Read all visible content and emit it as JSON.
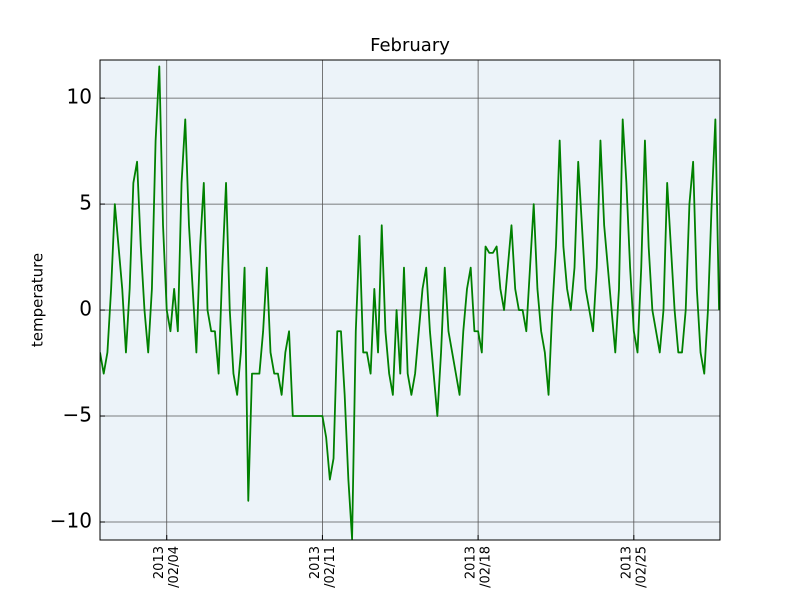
{
  "chart_data": {
    "type": "line",
    "title": "February",
    "y_label": "temperature",
    "x": [
      "2013-02-01T00:00",
      "2013-02-01T04:00",
      "2013-02-01T08:00",
      "2013-02-01T12:00",
      "2013-02-01T16:00",
      "2013-02-01T20:00",
      "2013-02-02T00:00",
      "2013-02-02T04:00",
      "2013-02-02T08:00",
      "2013-02-02T12:00",
      "2013-02-02T16:00",
      "2013-02-02T20:00",
      "2013-02-03T00:00",
      "2013-02-03T04:00",
      "2013-02-03T08:00",
      "2013-02-03T12:00",
      "2013-02-03T16:00",
      "2013-02-03T20:00",
      "2013-02-04T00:00",
      "2013-02-04T04:00",
      "2013-02-04T08:00",
      "2013-02-04T12:00",
      "2013-02-04T16:00",
      "2013-02-04T20:00",
      "2013-02-05T00:00",
      "2013-02-05T04:00",
      "2013-02-05T08:00",
      "2013-02-05T12:00",
      "2013-02-05T16:00",
      "2013-02-05T20:00",
      "2013-02-06T00:00",
      "2013-02-06T04:00",
      "2013-02-06T08:00",
      "2013-02-06T12:00",
      "2013-02-06T16:00",
      "2013-02-06T20:00",
      "2013-02-07T00:00",
      "2013-02-07T04:00",
      "2013-02-07T08:00",
      "2013-02-07T12:00",
      "2013-02-07T16:00",
      "2013-02-07T20:00",
      "2013-02-08T00:00",
      "2013-02-08T04:00",
      "2013-02-08T08:00",
      "2013-02-08T12:00",
      "2013-02-08T16:00",
      "2013-02-08T20:00",
      "2013-02-09T00:00",
      "2013-02-09T04:00",
      "2013-02-09T08:00",
      "2013-02-09T12:00",
      "2013-02-09T16:00",
      "2013-02-09T20:00",
      "2013-02-10T00:00",
      "2013-02-10T04:00",
      "2013-02-10T08:00",
      "2013-02-10T12:00",
      "2013-02-10T16:00",
      "2013-02-10T20:00",
      "2013-02-11T00:00",
      "2013-02-11T04:00",
      "2013-02-11T08:00",
      "2013-02-11T12:00",
      "2013-02-11T16:00",
      "2013-02-11T20:00",
      "2013-02-12T00:00",
      "2013-02-12T04:00",
      "2013-02-12T08:00",
      "2013-02-12T12:00",
      "2013-02-12T16:00",
      "2013-02-12T20:00",
      "2013-02-13T00:00",
      "2013-02-13T04:00",
      "2013-02-13T08:00",
      "2013-02-13T12:00",
      "2013-02-13T16:00",
      "2013-02-13T20:00",
      "2013-02-14T00:00",
      "2013-02-14T04:00",
      "2013-02-14T08:00",
      "2013-02-14T12:00",
      "2013-02-14T16:00",
      "2013-02-14T20:00",
      "2013-02-15T00:00",
      "2013-02-15T04:00",
      "2013-02-15T08:00",
      "2013-02-15T12:00",
      "2013-02-15T16:00",
      "2013-02-15T20:00",
      "2013-02-16T00:00",
      "2013-02-16T04:00",
      "2013-02-16T08:00",
      "2013-02-16T12:00",
      "2013-02-16T16:00",
      "2013-02-16T20:00",
      "2013-02-17T00:00",
      "2013-02-17T04:00",
      "2013-02-17T08:00",
      "2013-02-17T12:00",
      "2013-02-17T16:00",
      "2013-02-17T20:00",
      "2013-02-18T00:00",
      "2013-02-18T04:00",
      "2013-02-18T08:00",
      "2013-02-18T12:00",
      "2013-02-18T16:00",
      "2013-02-18T20:00",
      "2013-02-19T00:00",
      "2013-02-19T04:00",
      "2013-02-19T08:00",
      "2013-02-19T12:00",
      "2013-02-19T16:00",
      "2013-02-19T20:00",
      "2013-02-20T00:00",
      "2013-02-20T04:00",
      "2013-02-20T08:00",
      "2013-02-20T12:00",
      "2013-02-20T16:00",
      "2013-02-20T20:00",
      "2013-02-21T00:00",
      "2013-02-21T04:00",
      "2013-02-21T08:00",
      "2013-02-21T12:00",
      "2013-02-21T16:00",
      "2013-02-21T20:00",
      "2013-02-22T00:00",
      "2013-02-22T04:00",
      "2013-02-22T08:00",
      "2013-02-22T12:00",
      "2013-02-22T16:00",
      "2013-02-22T20:00",
      "2013-02-23T00:00",
      "2013-02-23T04:00",
      "2013-02-23T08:00",
      "2013-02-23T12:00",
      "2013-02-23T16:00",
      "2013-02-23T20:00",
      "2013-02-24T00:00",
      "2013-02-24T04:00",
      "2013-02-24T08:00",
      "2013-02-24T12:00",
      "2013-02-24T16:00",
      "2013-02-24T20:00",
      "2013-02-25T00:00",
      "2013-02-25T04:00",
      "2013-02-25T08:00",
      "2013-02-25T12:00",
      "2013-02-25T16:00",
      "2013-02-25T20:00",
      "2013-02-26T00:00",
      "2013-02-26T04:00",
      "2013-02-26T08:00",
      "2013-02-26T12:00",
      "2013-02-26T16:00",
      "2013-02-26T20:00",
      "2013-02-27T00:00",
      "2013-02-27T04:00",
      "2013-02-27T08:00",
      "2013-02-27T12:00",
      "2013-02-27T16:00",
      "2013-02-27T20:00",
      "2013-02-28T00:00",
      "2013-02-28T04:00",
      "2013-02-28T08:00",
      "2013-02-28T12:00",
      "2013-02-28T16:00",
      "2013-02-28T20:00"
    ],
    "series": [
      {
        "name": "temperature",
        "color": "#008000",
        "values": [
          -2,
          -3,
          -2,
          1,
          5,
          3,
          1,
          -2,
          1,
          6,
          7,
          3,
          0,
          -2,
          1,
          8,
          11.5,
          4,
          0,
          -1,
          1,
          -1,
          6,
          9,
          4,
          1,
          -2,
          3,
          6,
          0,
          -1,
          -1,
          -3,
          2,
          6,
          0,
          -3,
          -4,
          -2,
          2,
          -9,
          -3,
          -3,
          -3,
          -1,
          2,
          -2,
          -3,
          -3,
          -4,
          -2,
          -1,
          -5,
          -5,
          -5,
          -5,
          -5,
          -5,
          -5,
          -5,
          -5,
          -6,
          -8,
          -7,
          -1,
          -1,
          -4,
          -8,
          -10.8,
          -1,
          3.5,
          -2,
          -2,
          -3,
          1,
          -2,
          4,
          -1,
          -3,
          -4,
          0,
          -3,
          2,
          -3,
          -4,
          -3,
          -1,
          1,
          2,
          -1,
          -3,
          -5,
          -2,
          2,
          -1,
          -2,
          -3,
          -4,
          -1,
          1,
          2,
          -1,
          -1,
          -2,
          3,
          2.7,
          2.7,
          3,
          1,
          0,
          2,
          4,
          1,
          0,
          0,
          -1,
          2,
          5,
          1,
          -1,
          -2,
          -4,
          0,
          3,
          8,
          3,
          1,
          0,
          2,
          7,
          4,
          1,
          0,
          -1,
          2,
          8,
          4,
          2,
          0,
          -2,
          1,
          9,
          6,
          2,
          -1,
          -2,
          2,
          8,
          3,
          0,
          -1,
          -2,
          0,
          6,
          3,
          0,
          -2,
          -2,
          0,
          5,
          7,
          1,
          -2,
          -3,
          0,
          5,
          9,
          0
        ]
      }
    ],
    "xlim": [
      "2013-02-01T00:00",
      "2013-02-28T21:00"
    ],
    "xticks": [
      {
        "value": "2013-02-04T00:00",
        "label": "2013\n/02/04"
      },
      {
        "value": "2013-02-11T00:00",
        "label": "2013\n/02/11"
      },
      {
        "value": "2013-02-18T00:00",
        "label": "2013\n/02/18"
      },
      {
        "value": "2013-02-25T00:00",
        "label": "2013\n/02/25"
      }
    ],
    "ylim": [
      -10.85,
      11.8
    ],
    "yticks": [
      {
        "value": -10,
        "label": "−10"
      },
      {
        "value": -5,
        "label": "−5"
      },
      0,
      5,
      10
    ],
    "grid": true
  }
}
